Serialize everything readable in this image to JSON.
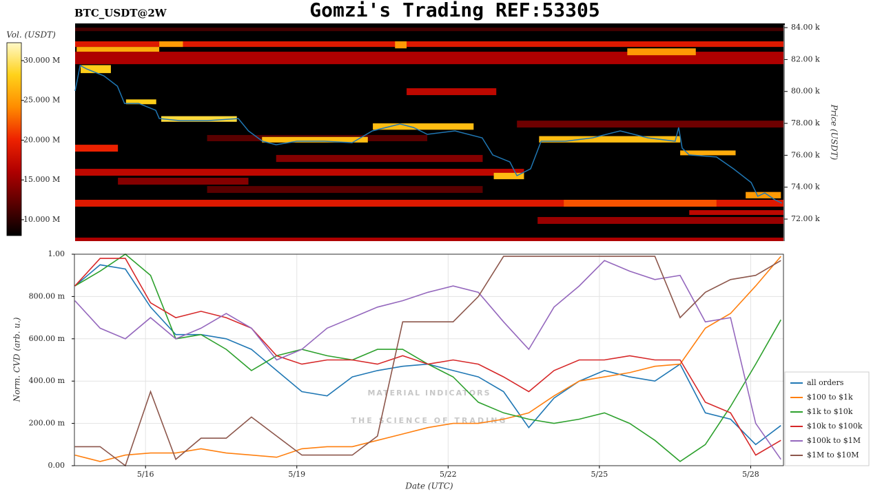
{
  "chart_data": [
    {
      "type": "heatmap",
      "title": "Gomzi's Trading REF:53305",
      "subtitle": "BTC_USDT@2W",
      "ylabel": "Price (USDT)",
      "xlim": [
        14.59,
        28.65
      ],
      "ylim": [
        70620,
        84220
      ],
      "yticks": [
        {
          "value": 72000,
          "label": "72.00 k"
        },
        {
          "value": 74000,
          "label": "74.00 k"
        },
        {
          "value": 76000,
          "label": "76.00 k"
        },
        {
          "value": 78000,
          "label": "78.00 k"
        },
        {
          "value": 80000,
          "label": "80.00 k"
        },
        {
          "value": 82000,
          "label": "82.00 k"
        },
        {
          "value": 84000,
          "label": "84.00 k"
        }
      ],
      "colorbar": {
        "label": "Vol. (USDT)",
        "lim": [
          8000000,
          32250000
        ],
        "ticks": [
          {
            "value": 10000000,
            "label": "10.000 M"
          },
          {
            "value": 15000000,
            "label": "15.000 M"
          },
          {
            "value": 20000000,
            "label": "20.000 M"
          },
          {
            "value": 25000000,
            "label": "25.000 M"
          },
          {
            "value": 30000000,
            "label": "30.000 M"
          }
        ],
        "colormap": [
          "#000000",
          "#5a0000",
          "#b00000",
          "#ee2200",
          "#ff8c00",
          "#ffd21a",
          "#fff9c8"
        ]
      },
      "bands": [
        {
          "price_range": [
            83780,
            84000
          ],
          "date_range": [
            14.59,
            28.65
          ],
          "volume": 11000000
        },
        {
          "price_range": [
            82790,
            83140
          ],
          "date_range": [
            14.59,
            28.65
          ],
          "volume": 19000000
        },
        {
          "price_range": [
            81710,
            82490
          ],
          "date_range": [
            14.59,
            28.65
          ],
          "volume": 16000000
        },
        {
          "price_range": [
            82490,
            82790
          ],
          "date_range": [
            14.62,
            16.26
          ],
          "volume": 26000000
        },
        {
          "price_range": [
            82790,
            83140
          ],
          "date_range": [
            16.26,
            16.73
          ],
          "volume": 25000000
        },
        {
          "price_range": [
            82700,
            83140
          ],
          "date_range": [
            20.94,
            21.17
          ],
          "volume": 25000000
        },
        {
          "price_range": [
            82270,
            82700
          ],
          "date_range": [
            25.55,
            26.91
          ],
          "volume": 25000000
        },
        {
          "price_range": [
            79770,
            80200
          ],
          "date_range": [
            21.17,
            22.95
          ],
          "volume": 17000000
        },
        {
          "price_range": [
            77740,
            78170
          ],
          "date_range": [
            23.36,
            28.65
          ],
          "volume": 13000000
        },
        {
          "price_range": [
            76880,
            77270
          ],
          "date_range": [
            17.21,
            21.58
          ],
          "volume": 12000000
        },
        {
          "price_range": [
            76230,
            76660
          ],
          "date_range": [
            14.59,
            15.44
          ],
          "volume": 20000000
        },
        {
          "price_range": [
            75580,
            76020
          ],
          "date_range": [
            18.58,
            22.68
          ],
          "volume": 14000000
        },
        {
          "price_range": [
            74720,
            75150
          ],
          "date_range": [
            14.59,
            23.5
          ],
          "volume": 17000000
        },
        {
          "price_range": [
            74160,
            74590
          ],
          "date_range": [
            15.44,
            18.03
          ],
          "volume": 14000000
        },
        {
          "price_range": [
            73640,
            74070
          ],
          "date_range": [
            17.21,
            22.68
          ],
          "volume": 12000000
        },
        {
          "price_range": [
            72780,
            73210
          ],
          "date_range": [
            14.59,
            28.65
          ],
          "volume": 19000000
        },
        {
          "price_range": [
            72780,
            73210
          ],
          "date_range": [
            24.29,
            27.32
          ],
          "volume": 22000000
        },
        {
          "price_range": [
            72260,
            72560
          ],
          "date_range": [
            26.78,
            28.65
          ],
          "volume": 17000000
        },
        {
          "price_range": [
            71700,
            72130
          ],
          "date_range": [
            23.77,
            28.65
          ],
          "volume": 15000000
        },
        {
          "price_range": [
            70620,
            70840
          ],
          "date_range": [
            14.59,
            28.65
          ],
          "volume": 16000000
        },
        {
          "price_range": [
            81150,
            81650
          ],
          "date_range": [
            14.7,
            15.3
          ],
          "volume": 28000000
        },
        {
          "price_range": [
            79200,
            79500
          ],
          "date_range": [
            15.6,
            16.2
          ],
          "volume": 28000000
        },
        {
          "price_range": [
            78100,
            78450
          ],
          "date_range": [
            16.3,
            17.8
          ],
          "volume": 29000000
        },
        {
          "price_range": [
            76800,
            77150
          ],
          "date_range": [
            18.3,
            20.4
          ],
          "volume": 27000000
        },
        {
          "price_range": [
            77600,
            78000
          ],
          "date_range": [
            20.5,
            22.5
          ],
          "volume": 27000000
        },
        {
          "price_range": [
            76800,
            77200
          ],
          "date_range": [
            23.8,
            26.6
          ],
          "volume": 27000000
        },
        {
          "price_range": [
            76000,
            76300
          ],
          "date_range": [
            26.6,
            27.7
          ],
          "volume": 26000000
        },
        {
          "price_range": [
            74500,
            74900
          ],
          "date_range": [
            22.9,
            23.5
          ],
          "volume": 27000000
        },
        {
          "price_range": [
            73300,
            73700
          ],
          "date_range": [
            27.9,
            28.6
          ],
          "volume": 25000000
        }
      ],
      "x": [
        14.59,
        14.69,
        14.82,
        15.16,
        15.43,
        15.57,
        15.85,
        16.19,
        16.26,
        16.67,
        17.21,
        17.83,
        18.03,
        18.31,
        18.58,
        18.99,
        19.54,
        20.09,
        20.49,
        21.04,
        21.31,
        21.58,
        22.13,
        22.67,
        22.88,
        23.22,
        23.36,
        23.63,
        23.84,
        24.32,
        24.86,
        25.41,
        25.96,
        26.5,
        26.57,
        26.64,
        26.78,
        27.32,
        27.66,
        28.01,
        28.14,
        28.28,
        28.48,
        28.62
      ],
      "price": {
        "color": "#1f77b4",
        "values": [
          80030,
          81630,
          81410,
          80980,
          80330,
          79250,
          79250,
          78820,
          78300,
          78170,
          78170,
          78300,
          77530,
          76880,
          76660,
          76880,
          76880,
          76790,
          77530,
          77960,
          77740,
          77310,
          77530,
          77090,
          76020,
          75580,
          74720,
          75150,
          76880,
          76880,
          77090,
          77530,
          77090,
          76880,
          77740,
          76450,
          76020,
          75890,
          75150,
          74290,
          73430,
          73640,
          73210,
          73000
        ]
      }
    },
    {
      "type": "line",
      "xlabel": "Date (UTC)",
      "ylabel": "Norm. CVD (arb. u.)",
      "xlim": [
        14.59,
        28.65
      ],
      "ylim": [
        0,
        1
      ],
      "grid": true,
      "legend": "right",
      "xticks": [
        {
          "value": 16,
          "label": "5/16"
        },
        {
          "value": 19,
          "label": "5/19"
        },
        {
          "value": 22,
          "label": "5/22"
        },
        {
          "value": 25,
          "label": "5/25"
        },
        {
          "value": 28,
          "label": "5/28"
        }
      ],
      "yticks": [
        {
          "value": 0,
          "label": "0.00"
        },
        {
          "value": 0.2,
          "label": "200.00 m"
        },
        {
          "value": 0.4,
          "label": "400.00 m"
        },
        {
          "value": 0.6,
          "label": "600.00 m"
        },
        {
          "value": 0.8,
          "label": "800.00 m"
        },
        {
          "value": 1,
          "label": "1.00"
        }
      ],
      "watermark": {
        "title": "MATERIAL INDICATORS",
        "subtitle": "THE SCIENCE OF TRADING"
      },
      "x": [
        14.6,
        15.1,
        15.6,
        16.1,
        16.6,
        17.1,
        17.6,
        18.1,
        18.6,
        19.1,
        19.6,
        20.1,
        20.6,
        21.1,
        21.6,
        22.1,
        22.6,
        23.1,
        23.6,
        24.1,
        24.6,
        25.1,
        25.6,
        26.1,
        26.6,
        27.1,
        27.6,
        28.1,
        28.6
      ],
      "series": [
        {
          "name": "all orders",
          "color": "#1f77b4",
          "values": [
            0.85,
            0.95,
            0.93,
            0.75,
            0.62,
            0.62,
            0.6,
            0.55,
            0.45,
            0.35,
            0.33,
            0.42,
            0.45,
            0.47,
            0.48,
            0.45,
            0.42,
            0.35,
            0.18,
            0.32,
            0.4,
            0.45,
            0.42,
            0.4,
            0.48,
            0.25,
            0.22,
            0.1,
            0.19
          ]
        },
        {
          "name": "$100 to $1k",
          "color": "#ff7f0e",
          "values": [
            0.05,
            0.02,
            0.05,
            0.06,
            0.06,
            0.08,
            0.06,
            0.05,
            0.04,
            0.08,
            0.09,
            0.09,
            0.12,
            0.15,
            0.18,
            0.2,
            0.2,
            0.22,
            0.25,
            0.33,
            0.4,
            0.42,
            0.44,
            0.47,
            0.48,
            0.65,
            0.72,
            0.85,
            0.99
          ]
        },
        {
          "name": "$1k to $10k",
          "color": "#2ca02c",
          "values": [
            0.85,
            0.92,
            1.0,
            0.9,
            0.6,
            0.62,
            0.55,
            0.45,
            0.52,
            0.55,
            0.52,
            0.5,
            0.55,
            0.55,
            0.48,
            0.42,
            0.3,
            0.25,
            0.22,
            0.2,
            0.22,
            0.25,
            0.2,
            0.12,
            0.02,
            0.1,
            0.28,
            0.48,
            0.69
          ]
        },
        {
          "name": "$10k to $100k",
          "color": "#d62728",
          "values": [
            0.85,
            0.98,
            0.98,
            0.77,
            0.7,
            0.73,
            0.7,
            0.65,
            0.52,
            0.48,
            0.5,
            0.5,
            0.48,
            0.52,
            0.48,
            0.5,
            0.48,
            0.42,
            0.35,
            0.45,
            0.5,
            0.5,
            0.52,
            0.5,
            0.5,
            0.3,
            0.25,
            0.05,
            0.12
          ]
        },
        {
          "name": "$100k to $1M",
          "color": "#9467bd",
          "values": [
            0.78,
            0.65,
            0.6,
            0.7,
            0.6,
            0.65,
            0.72,
            0.65,
            0.5,
            0.55,
            0.65,
            0.7,
            0.75,
            0.78,
            0.82,
            0.85,
            0.82,
            0.68,
            0.55,
            0.75,
            0.85,
            0.97,
            0.92,
            0.88,
            0.9,
            0.68,
            0.7,
            0.2,
            0.03
          ]
        },
        {
          "name": "$1M to $10M",
          "color": "#8c564b",
          "values": [
            0.09,
            0.09,
            0,
            0.35,
            0.03,
            0.13,
            0.13,
            0.23,
            0.14,
            0.05,
            0.05,
            0.05,
            0.14,
            0.68,
            0.68,
            0.68,
            0.8,
            0.99,
            0.99,
            0.99,
            0.99,
            0.99,
            0.99,
            0.99,
            0.7,
            0.82,
            0.88,
            0.9,
            0.97
          ]
        }
      ]
    }
  ]
}
